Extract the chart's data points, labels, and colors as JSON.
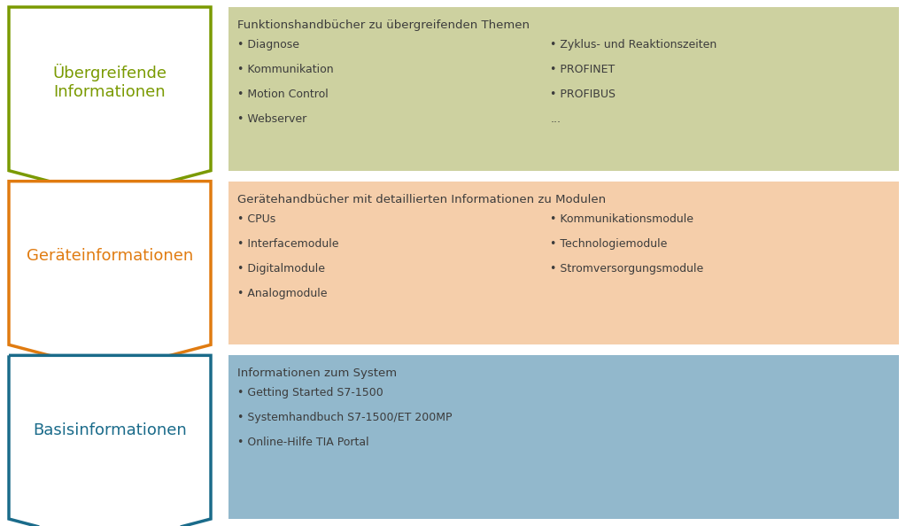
{
  "bg_color": "#ffffff",
  "fig_width": 10.23,
  "fig_height": 5.94,
  "sections": [
    {
      "label": "Übergreifende\nInformationen",
      "label_color": "#7a9a01",
      "border_color": "#7a9a01",
      "box_color": "#cdd1a0",
      "title": "Funktionshandbücher zu übergreifenden Themen",
      "items_left": [
        "• Diagnose",
        "• Kommunikation",
        "• Motion Control",
        "• Webserver"
      ],
      "items_right": [
        "• Zyklus- und Reaktionszeiten",
        "• PROFINET",
        "• PROFIBUS",
        "..."
      ]
    },
    {
      "label": "Geräteinformationen",
      "label_color": "#e07b10",
      "border_color": "#e07b10",
      "box_color": "#f5ceaa",
      "title": "Gerätehandbücher mit detaillierten Informationen zu Modulen",
      "items_left": [
        "• CPUs",
        "• Interfacemodule",
        "• Digitalmodule",
        "• Analogmodule"
      ],
      "items_right": [
        "• Kommunikationsmodule",
        "• Technologiemodule",
        "• Stromversorgungsmodule"
      ]
    },
    {
      "label": "Basisinformationen",
      "label_color": "#1a6b8a",
      "border_color": "#1a6b8a",
      "box_color": "#92b8cc",
      "title": "Informationen zum System",
      "items_left": [
        "• Getting Started S7-1500",
        "• Systemhandbuch S7-1500/ET 200MP",
        "• Online-Hilfe TIA Portal"
      ],
      "items_right": []
    }
  ],
  "panel_colors": [
    "#cdd1a0",
    "#f5ceaa",
    "#92b8cc"
  ],
  "shape_colors": [
    "#7a9a01",
    "#e07b10",
    "#1a6b8a"
  ],
  "shape_label_colors": [
    "#7a9a01",
    "#e07b10",
    "#1a6b8a"
  ],
  "text_color": "#3c3c3c",
  "title_fontsize": 9.5,
  "item_fontsize": 9.0,
  "label_fontsize": 13.0
}
